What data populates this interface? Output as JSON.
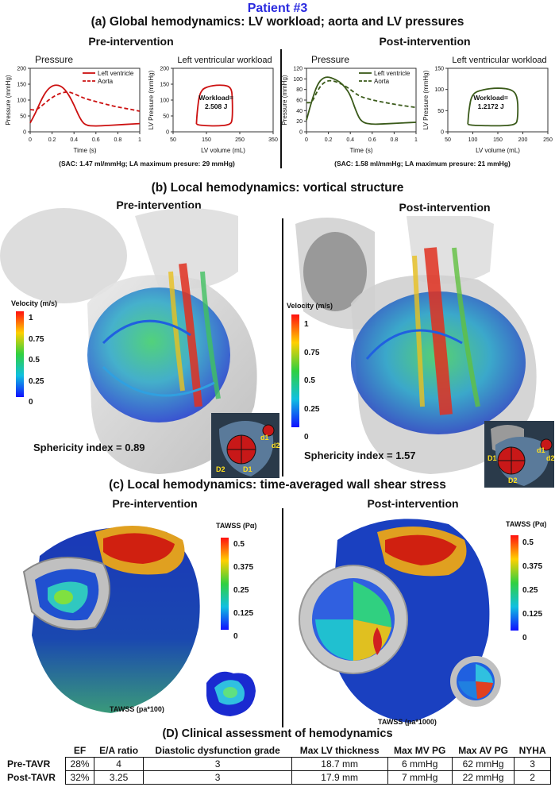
{
  "patient_label": "Patient #3",
  "section_a": {
    "title": "(a) Global hemodynamics: LV workload; aorta and LV pressures",
    "pre_label": "Pre-intervention",
    "post_label": "Post-intervention",
    "pre_note": "(SAC: 1.47 ml/mmHg; LA maximum presure: 29 mmHg)",
    "post_note": "(SAC: 1.58 ml/mmHg; LA maximum presure: 21 mmHg)",
    "colors": {
      "pre": "#cc1010",
      "post": "#3a5a1a"
    }
  },
  "chart_data": [
    {
      "type": "line",
      "title": "Pressure",
      "xlabel": "Time (s)",
      "ylabel": "Pressure (mmHg)",
      "xlim": [
        0,
        1
      ],
      "ylim": [
        0,
        200
      ],
      "x_ticks": [
        "0",
        "0.2",
        "0.4",
        "0.6",
        "0.8",
        "1"
      ],
      "y_ticks": [
        "0",
        "50",
        "100",
        "150",
        "200"
      ],
      "series": [
        {
          "name": "Left ventricle",
          "style": "solid",
          "x": [
            0,
            0.05,
            0.1,
            0.15,
            0.2,
            0.25,
            0.3,
            0.35,
            0.4,
            0.45,
            0.5,
            0.6,
            0.7,
            0.8,
            0.9,
            1.0
          ],
          "y": [
            28,
            60,
            100,
            130,
            145,
            148,
            140,
            118,
            85,
            45,
            20,
            18,
            20,
            22,
            24,
            26
          ]
        },
        {
          "name": "Aorta",
          "style": "dashed",
          "x": [
            0,
            0.05,
            0.1,
            0.15,
            0.2,
            0.25,
            0.3,
            0.35,
            0.4,
            0.45,
            0.5,
            0.6,
            0.7,
            0.8,
            0.9,
            1.0
          ],
          "y": [
            70,
            68,
            80,
            95,
            108,
            118,
            124,
            126,
            120,
            112,
            105,
            95,
            86,
            78,
            72,
            65
          ]
        }
      ]
    },
    {
      "type": "line",
      "title": "Left ventricular workload",
      "xlabel": "LV volume (mL)",
      "ylabel": "LV Pressure (mmHg)",
      "xlim": [
        50,
        350
      ],
      "ylim": [
        0,
        200
      ],
      "x_ticks": [
        "50",
        "150",
        "250",
        "350"
      ],
      "y_ticks": [
        "0",
        "50",
        "100",
        "150",
        "200"
      ],
      "annotation": "Workload=\n2.508 J",
      "annotation_lines": [
        "Workload=",
        "2.508 J"
      ],
      "series": [
        {
          "name": "",
          "style": "solid",
          "x": [
            120,
            122,
            130,
            160,
            200,
            225,
            228,
            228,
            222,
            180,
            140,
            125,
            120
          ],
          "y": [
            25,
            60,
            130,
            145,
            148,
            140,
            100,
            40,
            22,
            18,
            20,
            22,
            25
          ]
        }
      ]
    },
    {
      "type": "line",
      "title": "Pressure",
      "xlabel": "Time (s)",
      "ylabel": "Pressure (mmHg)",
      "xlim": [
        0,
        1
      ],
      "ylim": [
        0,
        120
      ],
      "x_ticks": [
        "0",
        "0.2",
        "0.4",
        "0.6",
        "0.8",
        "1"
      ],
      "y_ticks": [
        "0",
        "20",
        "40",
        "60",
        "80",
        "100",
        "120"
      ],
      "series": [
        {
          "name": "Left ventricle",
          "style": "solid",
          "x": [
            0,
            0.05,
            0.1,
            0.15,
            0.2,
            0.25,
            0.3,
            0.35,
            0.4,
            0.45,
            0.5,
            0.6,
            0.7,
            0.8,
            0.9,
            1.0
          ],
          "y": [
            22,
            60,
            90,
            102,
            104,
            100,
            95,
            85,
            70,
            40,
            18,
            14,
            15,
            16,
            17,
            18
          ]
        },
        {
          "name": "Aorta",
          "style": "dashed",
          "x": [
            0,
            0.05,
            0.1,
            0.15,
            0.2,
            0.25,
            0.3,
            0.35,
            0.4,
            0.45,
            0.5,
            0.6,
            0.7,
            0.8,
            0.9,
            1.0
          ],
          "y": [
            55,
            55,
            78,
            92,
            97,
            96,
            92,
            87,
            80,
            72,
            66,
            60,
            56,
            52,
            49,
            46
          ]
        }
      ]
    },
    {
      "type": "line",
      "title": "Left ventricular workload",
      "xlabel": "LV volume (mL)",
      "ylabel": "LV Pressure (mmHg)",
      "xlim": [
        50,
        250
      ],
      "ylim": [
        0,
        150
      ],
      "x_ticks": [
        "50",
        "100",
        "150",
        "200",
        "250"
      ],
      "y_ticks": [
        "0",
        "50",
        "100",
        "150"
      ],
      "annotation": "Workload=\n1.2172 J",
      "annotation_lines": [
        "Workload=",
        "1.2172 J"
      ],
      "series": [
        {
          "name": "",
          "style": "solid",
          "x": [
            90,
            92,
            98,
            120,
            150,
            180,
            190,
            190,
            185,
            150,
            110,
            95,
            90
          ],
          "y": [
            18,
            50,
            90,
            100,
            104,
            100,
            80,
            30,
            16,
            14,
            15,
            16,
            18
          ]
        }
      ]
    }
  ],
  "section_b": {
    "title": "(b) Local hemodynamics: vortical structure",
    "pre_label": "Pre-intervention",
    "post_label": "Post-intervention",
    "legend_title": "Velocity (m/s)",
    "legend_ticks": [
      "1",
      "0.75",
      "0.5",
      "0.25",
      "0"
    ],
    "pre_sphericity": "Sphericity index = 0.89",
    "post_sphericity": "Sphericity index = 1.57",
    "inset_labels": {
      "d1": "d1",
      "d2": "d2",
      "D1": "D1",
      "D2": "D2"
    }
  },
  "section_c": {
    "title": "(c) Local hemodynamics: time-averaged wall shear stress",
    "pre_label": "Pre-intervention",
    "post_label": "Post-intervention",
    "legend_title": "TAWSS (Pα)",
    "legend_ticks": [
      "0.5",
      "0.375",
      "0.25",
      "0.125",
      "0"
    ],
    "pre_scale_note": "TAWSS (pa*100)",
    "post_scale_note": "TAWSS (pa*1000)"
  },
  "section_d": {
    "title": "(D) Clinical assessment of hemodynamics",
    "columns": [
      "",
      "EF",
      "E/A ratio",
      "Diastolic dysfunction grade",
      "Max LV thickness",
      "Max MV PG",
      "Max AV PG",
      "NYHA"
    ],
    "rows": [
      [
        "Pre-TAVR",
        "28%",
        "4",
        "3",
        "18.7 mm",
        "6 mmHg",
        "62 mmHg",
        "3"
      ],
      [
        "Post-TAVR",
        "32%",
        "3.25",
        "3",
        "17.9 mm",
        "7 mmHg",
        "22 mmHg",
        "2"
      ]
    ]
  }
}
